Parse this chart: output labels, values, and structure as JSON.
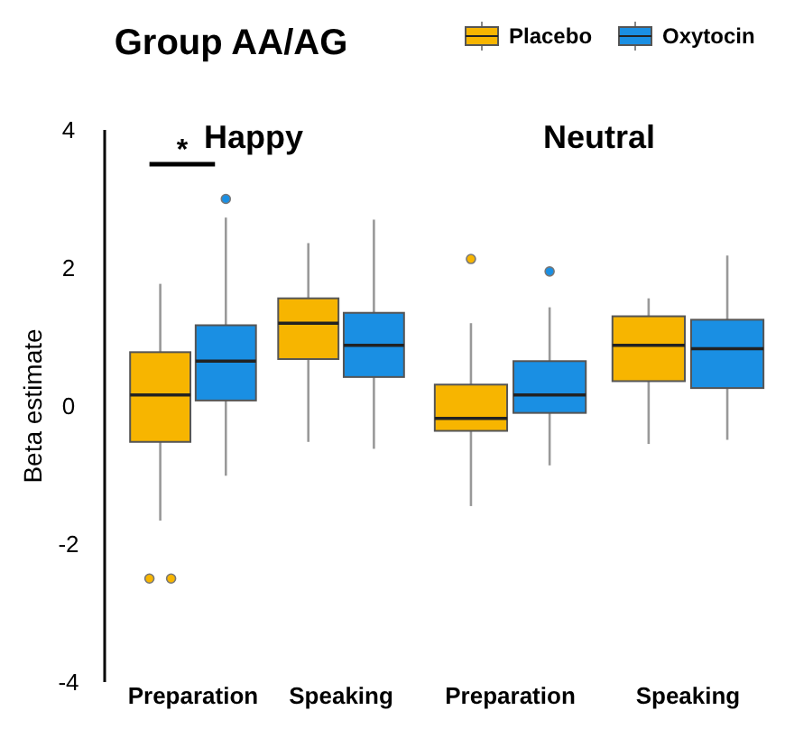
{
  "chart_data": [
    {
      "type": "box",
      "title": "Group AA/AG",
      "subtitle": "Happy",
      "ylabel": "Beta estimate",
      "categories": [
        "Preparation",
        "Speaking"
      ],
      "ylim": [
        -4,
        4
      ],
      "yticks": [
        -4,
        -2,
        0,
        2,
        4
      ],
      "grid": false,
      "annotations": [
        "*"
      ],
      "legend": "top right",
      "series": [
        {
          "name": "Placebo",
          "color": "#f7b500",
          "boxes": [
            {
              "low": -1.66,
              "q1": -0.52,
              "median": 0.16,
              "q3": 0.78,
              "high": 1.77,
              "outliers": [
                -2.5,
                -2.5
              ]
            },
            {
              "low": -0.52,
              "q1": 0.68,
              "median": 1.2,
              "q3": 1.56,
              "high": 2.36
            }
          ]
        },
        {
          "name": "Oxytocin",
          "color": "#1a8fe3",
          "boxes": [
            {
              "low": -1.01,
              "q1": 0.08,
              "median": 0.65,
              "q3": 1.17,
              "high": 2.73,
              "outliers": [
                3.0
              ]
            },
            {
              "low": -0.62,
              "q1": 0.42,
              "median": 0.88,
              "q3": 1.35,
              "high": 2.7
            }
          ]
        }
      ]
    },
    {
      "type": "box",
      "title": "Neutral",
      "categories": [
        "Preparation",
        "Speaking"
      ],
      "ylim": [
        -4,
        4
      ],
      "tick_labels": "x",
      "grid": false,
      "series": [
        {
          "color": "#f7b500",
          "boxes": [
            {
              "low": -1.45,
              "q1": -0.36,
              "median": -0.18,
              "q3": 0.31,
              "high": 1.2,
              "outliers": [
                2.13
              ]
            },
            {
              "low": -0.55,
              "q1": 0.36,
              "median": 0.88,
              "q3": 1.3,
              "high": 1.56
            }
          ]
        },
        {
          "color": "#1a8fe3",
          "boxes": [
            {
              "low": -0.86,
              "q1": -0.1,
              "median": 0.16,
              "q3": 0.65,
              "high": 1.43,
              "outliers": [
                1.95
              ]
            },
            {
              "low": -0.49,
              "q1": 0.26,
              "median": 0.83,
              "q3": 1.25,
              "high": 2.18
            }
          ]
        }
      ]
    }
  ]
}
